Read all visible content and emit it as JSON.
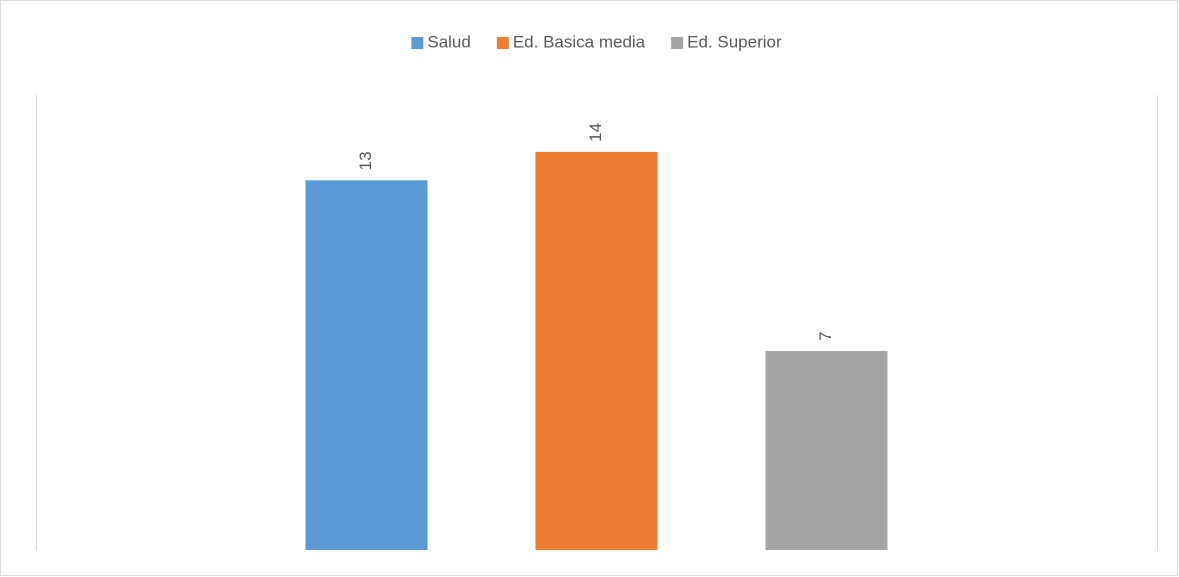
{
  "chart_data": {
    "type": "bar",
    "categories": [
      null
    ],
    "series": [
      {
        "name": "Salud",
        "color": "#5b9bd5",
        "values": [
          13
        ]
      },
      {
        "name": "Ed. Basica media",
        "color": "#ed7d31",
        "values": [
          14
        ]
      },
      {
        "name": "Ed. Superior",
        "color": "#a5a5a5",
        "values": [
          7
        ]
      }
    ],
    "ylim": [
      0,
      16
    ],
    "legend": "top"
  }
}
